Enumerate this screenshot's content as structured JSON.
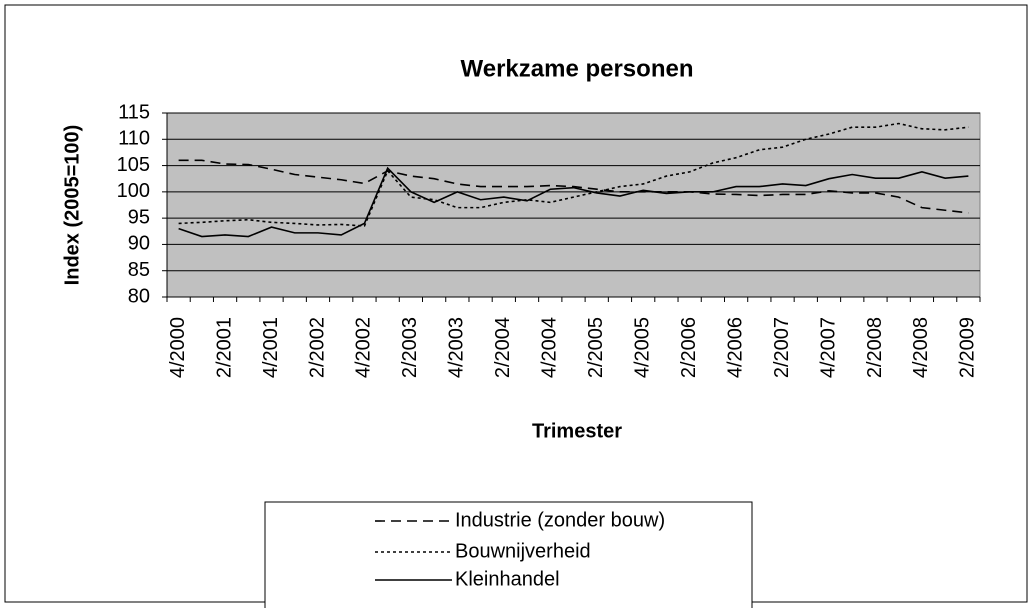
{
  "chart_data": {
    "type": "line",
    "title": "Werkzame personen",
    "x_label": "Trimester",
    "y_label": "Index (2005=100)",
    "categories": [
      "4/2000",
      null,
      "2/2001",
      null,
      "4/2001",
      null,
      "2/2002",
      null,
      "4/2002",
      null,
      "2/2003",
      null,
      "4/2003",
      null,
      "2/2004",
      null,
      "4/2004",
      null,
      "2/2005",
      null,
      "4/2005",
      null,
      "2/2006",
      null,
      "4/2006",
      null,
      "2/2007",
      null,
      "4/2007",
      null,
      "2/2008",
      null,
      "4/2008",
      null,
      "2/2009"
    ],
    "series": [
      {
        "name": "Industrie (zonder bouw)",
        "color": "#000000",
        "dash": "10,6",
        "values": [
          106,
          106,
          105.3,
          105.2,
          104.3,
          103.3,
          102.8,
          102.3,
          101.6,
          104,
          103,
          102.5,
          101.5,
          101,
          101,
          101,
          101.2,
          101,
          100.5,
          100,
          100,
          100,
          100,
          99.6,
          99.5,
          99.3,
          99.5,
          99.5,
          100.2,
          99.8,
          99.8,
          99,
          97,
          96.5,
          96
        ]
      },
      {
        "name": "Bouwnijverheid",
        "color": "#000000",
        "dash": "3,3",
        "values": [
          94,
          94.2,
          94.5,
          94.7,
          94.2,
          94,
          93.7,
          93.8,
          93.5,
          104,
          99,
          98.5,
          97,
          97,
          98,
          98.5,
          98,
          99,
          100,
          101,
          101.5,
          103,
          103.8,
          105.5,
          106.5,
          108,
          108.5,
          110,
          111,
          112.3,
          112.3,
          113,
          112,
          111.8,
          112.3
        ]
      },
      {
        "name": "Kleinhandel",
        "color": "#000000",
        "dash": "none",
        "values": [
          93,
          91.5,
          91.8,
          91.5,
          93.3,
          92.2,
          92.2,
          91.8,
          94,
          104.5,
          100,
          98,
          100,
          98.5,
          99,
          98.3,
          100.5,
          100.8,
          99.8,
          99.2,
          100.3,
          99.7,
          100,
          100,
          101,
          101,
          101.5,
          101.2,
          102.5,
          103.3,
          102.6,
          102.6,
          103.8,
          102.6,
          103
        ]
      }
    ],
    "ylim": [
      80,
      115
    ],
    "yticks": [
      80,
      85,
      90,
      95,
      100,
      105,
      110,
      115
    ],
    "grid": true,
    "plot_background": "#c0c0c0",
    "legend": "bottom"
  }
}
